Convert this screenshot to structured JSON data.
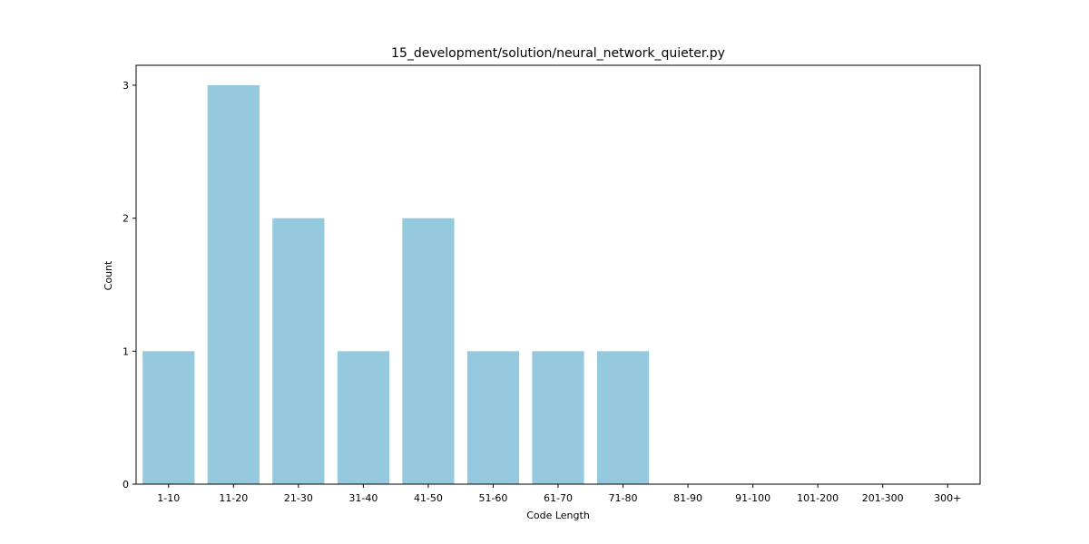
{
  "chart_data": {
    "type": "bar",
    "title": "15_development/solution/neural_network_quieter.py",
    "xlabel": "Code Length",
    "ylabel": "Count",
    "categories": [
      "1-10",
      "11-20",
      "21-30",
      "31-40",
      "41-50",
      "51-60",
      "61-70",
      "71-80",
      "81-90",
      "91-100",
      "101-200",
      "201-300",
      "300+"
    ],
    "values": [
      1,
      3,
      2,
      1,
      2,
      1,
      1,
      1,
      0,
      0,
      0,
      0,
      0
    ],
    "ylim": [
      0,
      3.15
    ],
    "yticks": [
      0,
      1,
      2,
      3
    ],
    "bar_color": "#95c9de",
    "grid": false,
    "legend": "none"
  }
}
